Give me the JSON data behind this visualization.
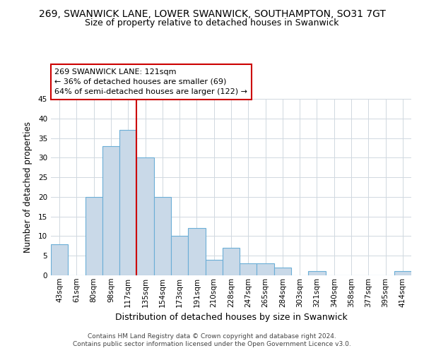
{
  "title1": "269, SWANWICK LANE, LOWER SWANWICK, SOUTHAMPTON, SO31 7GT",
  "title2": "Size of property relative to detached houses in Swanwick",
  "xlabel": "Distribution of detached houses by size in Swanwick",
  "ylabel": "Number of detached properties",
  "bar_labels": [
    "43sqm",
    "61sqm",
    "80sqm",
    "98sqm",
    "117sqm",
    "135sqm",
    "154sqm",
    "173sqm",
    "191sqm",
    "210sqm",
    "228sqm",
    "247sqm",
    "265sqm",
    "284sqm",
    "303sqm",
    "321sqm",
    "340sqm",
    "358sqm",
    "377sqm",
    "395sqm",
    "414sqm"
  ],
  "bar_values": [
    8,
    0,
    20,
    33,
    37,
    30,
    20,
    10,
    12,
    4,
    7,
    3,
    3,
    2,
    0,
    1,
    0,
    0,
    0,
    0,
    1
  ],
  "bar_color": "#c9d9e8",
  "bar_edge_color": "#6baed6",
  "vline_color": "#cc0000",
  "ylim": [
    0,
    45
  ],
  "yticks": [
    0,
    5,
    10,
    15,
    20,
    25,
    30,
    35,
    40,
    45
  ],
  "annotation_line1": "269 SWANWICK LANE: 121sqm",
  "annotation_line2": "← 36% of detached houses are smaller (69)",
  "annotation_line3": "64% of semi-detached houses are larger (122) →",
  "annotation_box_color": "white",
  "annotation_box_edge_color": "#cc0000",
  "footer1": "Contains HM Land Registry data © Crown copyright and database right 2024.",
  "footer2": "Contains public sector information licensed under the Open Government Licence v3.0.",
  "grid_color": "#d0d8e0",
  "title1_fontsize": 10,
  "title2_fontsize": 9,
  "xlabel_fontsize": 9,
  "ylabel_fontsize": 8.5,
  "tick_fontsize": 7.5,
  "annotation_fontsize": 8,
  "footer_fontsize": 6.5
}
